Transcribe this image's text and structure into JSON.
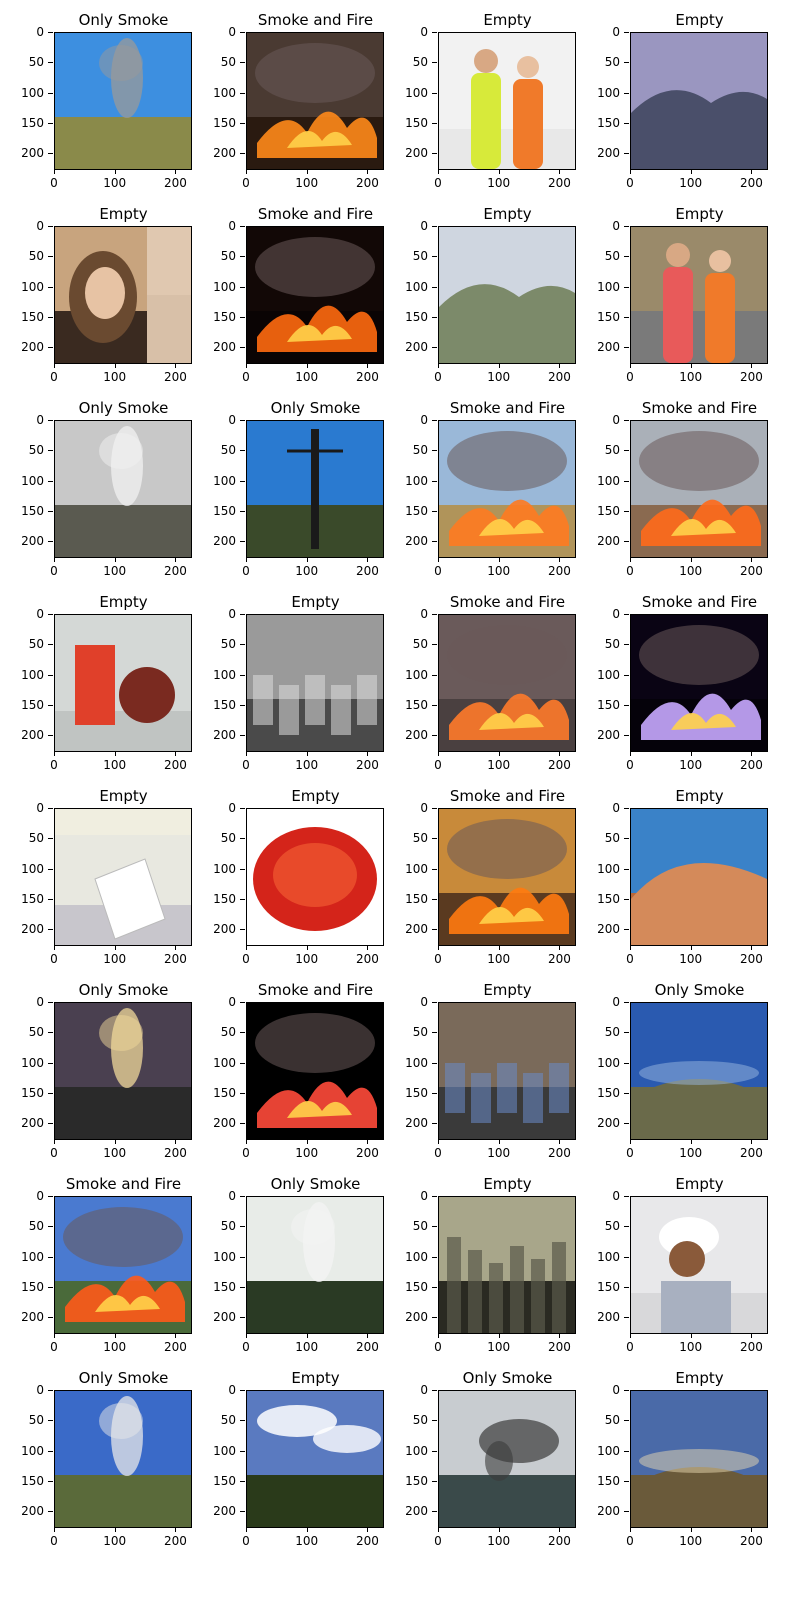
{
  "panels": [
    {
      "title": "Only Smoke",
      "scene": "smoke-town",
      "sky": "#3d8fe0",
      "ground": "#8a8a4a",
      "accent": "#9a9a9a"
    },
    {
      "title": "Smoke and Fire",
      "scene": "fire-line",
      "sky": "#4a3a32",
      "ground": "#2a1a10",
      "accent": "#ff8a1a"
    },
    {
      "title": "Empty",
      "scene": "workers",
      "sky": "#f2f2f2",
      "ground": "#e8e8e8",
      "accent": "#d7ea3a"
    },
    {
      "title": "Empty",
      "scene": "hills",
      "sky": "#9a96c0",
      "ground": "#2f3a2a",
      "accent": "#4a4f6a"
    },
    {
      "title": "Empty",
      "scene": "portrait",
      "sky": "#c8a47e",
      "ground": "#3a2a20",
      "accent": "#e7c3a4"
    },
    {
      "title": "Smoke and Fire",
      "scene": "fire-night",
      "sky": "#120806",
      "ground": "#0a0404",
      "accent": "#ff6a10"
    },
    {
      "title": "Empty",
      "scene": "hills",
      "sky": "#cfd6e0",
      "ground": "#4a5a3a",
      "accent": "#7c8a6a"
    },
    {
      "title": "Empty",
      "scene": "people",
      "sky": "#9a8a6a",
      "ground": "#7a7a7a",
      "accent": "#e85a5a"
    },
    {
      "title": "Only Smoke",
      "scene": "mist",
      "sky": "#c8c8c8",
      "ground": "#5a5a50",
      "accent": "#f2f2f2"
    },
    {
      "title": "Only Smoke",
      "scene": "tower",
      "sky": "#2a7ad0",
      "ground": "#3a4a2a",
      "accent": "#1a1a1a"
    },
    {
      "title": "Smoke and Fire",
      "scene": "fire-yard",
      "sky": "#9ab8d8",
      "ground": "#b0945a",
      "accent": "#ff7a20"
    },
    {
      "title": "Smoke and Fire",
      "scene": "fire-smoke",
      "sky": "#aab0b8",
      "ground": "#8a6a50",
      "accent": "#ff6a1a"
    },
    {
      "title": "Empty",
      "scene": "product",
      "sky": "#d4d8d6",
      "ground": "#c0c4c2",
      "accent": "#e0402a"
    },
    {
      "title": "Empty",
      "scene": "classroom",
      "sky": "#9a9a9a",
      "ground": "#4a4a4a",
      "accent": "#dcdcdc"
    },
    {
      "title": "Smoke and Fire",
      "scene": "fire-house",
      "sky": "#6a5a5a",
      "ground": "#4a4040",
      "accent": "#ff7a2a"
    },
    {
      "title": "Smoke and Fire",
      "scene": "fire-violet",
      "sky": "#0a0414",
      "ground": "#05020a",
      "accent": "#c8a8ff"
    },
    {
      "title": "Empty",
      "scene": "bag",
      "sky": "#e8e8e0",
      "ground": "#c8c6cc",
      "accent": "#ffffff"
    },
    {
      "title": "Empty",
      "scene": "tin",
      "sky": "#ffffff",
      "ground": "#ffffff",
      "accent": "#d4241a"
    },
    {
      "title": "Smoke and Fire",
      "scene": "fire-field",
      "sky": "#c88a3a",
      "ground": "#5a3a20",
      "accent": "#ff7a10"
    },
    {
      "title": "Empty",
      "scene": "desert",
      "sky": "#3a82c8",
      "ground": "#b8683a",
      "accent": "#d48a5a"
    },
    {
      "title": "Only Smoke",
      "scene": "glare",
      "sky": "#4a4050",
      "ground": "#2a2a2a",
      "accent": "#f0d89a"
    },
    {
      "title": "Smoke and Fire",
      "scene": "fire-dark",
      "sky": "#000000",
      "ground": "#000000",
      "accent": "#ff4a3a"
    },
    {
      "title": "Empty",
      "scene": "cctv-room",
      "sky": "#7a6a5a",
      "ground": "#3a3a3a",
      "accent": "#6a8ac8"
    },
    {
      "title": "Only Smoke",
      "scene": "fisheye",
      "sky": "#2a5ab0",
      "ground": "#6a6a4a",
      "accent": "#9ab8e0"
    },
    {
      "title": "Smoke and Fire",
      "scene": "fire-suburb",
      "sky": "#4a7ad0",
      "ground": "#4a6a3a",
      "accent": "#ff5a1a"
    },
    {
      "title": "Only Smoke",
      "scene": "forest-smoke",
      "sky": "#e8ece8",
      "ground": "#2a3a24",
      "accent": "#f4f4f4"
    },
    {
      "title": "Empty",
      "scene": "haze-city",
      "sky": "#a8a68a",
      "ground": "#2a2a22",
      "accent": "#5a5a4a"
    },
    {
      "title": "Empty",
      "scene": "drill",
      "sky": "#e8e8ea",
      "ground": "#d8d8da",
      "accent": "#8a5a3a"
    },
    {
      "title": "Only Smoke",
      "scene": "pine",
      "sky": "#3a6ac8",
      "ground": "#5a6a3a",
      "accent": "#e8e8e8"
    },
    {
      "title": "Empty",
      "scene": "clouds",
      "sky": "#5a7ac0",
      "ground": "#2a3a1a",
      "accent": "#ffffff"
    },
    {
      "title": "Only Smoke",
      "scene": "dark-plume",
      "sky": "#c8ccd0",
      "ground": "#3a4a4a",
      "accent": "#3a3a3a"
    },
    {
      "title": "Empty",
      "scene": "fisheye-dusk",
      "sky": "#4a6aa8",
      "ground": "#6a5a3a",
      "accent": "#e8d8b0"
    }
  ],
  "axis": {
    "yticks": [
      "0",
      "50",
      "100",
      "150",
      "200"
    ],
    "xticks": [
      "0",
      "100",
      "200"
    ]
  }
}
